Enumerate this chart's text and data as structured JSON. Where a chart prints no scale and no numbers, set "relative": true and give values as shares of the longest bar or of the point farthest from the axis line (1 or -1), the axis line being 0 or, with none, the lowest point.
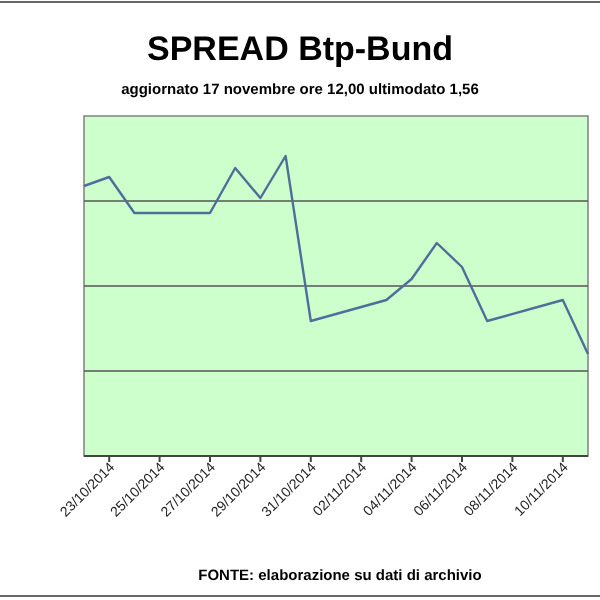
{
  "chart_data": {
    "type": "line",
    "title": "SPREAD Btp-Bund",
    "subtitle": "aggiornato 17 novembre ore 12,00  ultimodato  1,56",
    "annotations": [
      "FONTE: elaborazione su dati di archivio"
    ],
    "relative": true,
    "grid": "y",
    "marker": "none",
    "x": [
      "2014-10-22",
      "2014-10-23",
      "2014-10-24",
      "2014-10-27",
      "2014-10-28",
      "2014-10-29",
      "2014-10-30",
      "2014-10-31",
      "2014-11-03",
      "2014-11-04",
      "2014-11-05",
      "2014-11-06",
      "2014-11-07",
      "2014-11-10",
      "2014-11-11"
    ],
    "series": [
      {
        "color": "#4f6f9a",
        "values": [
          0.9,
          0.93,
          0.81,
          0.81,
          0.96,
          0.86,
          1,
          0.45,
          0.52,
          0.59,
          0.71,
          0.63,
          0.45,
          0.52,
          0.34
        ]
      }
    ],
    "xlim": [
      "2014-10-22",
      "2014-11-11"
    ],
    "xticks": [
      {
        "value": "2014-10-23",
        "label": "23/10/2014"
      },
      {
        "value": "2014-10-25",
        "label": "25/10/2014"
      },
      {
        "value": "2014-10-27",
        "label": "27/10/2014"
      },
      {
        "value": "2014-10-29",
        "label": "29/10/2014"
      },
      {
        "value": "2014-10-31",
        "label": "31/10/2014"
      },
      {
        "value": "2014-11-02",
        "label": "02/11/2014"
      },
      {
        "value": "2014-11-04",
        "label": "04/11/2014"
      },
      {
        "value": "2014-11-06",
        "label": "06/11/2014"
      },
      {
        "value": "2014-11-08",
        "label": "08/11/2014"
      },
      {
        "value": "2014-11-10",
        "label": "10/11/2014"
      }
    ]
  }
}
